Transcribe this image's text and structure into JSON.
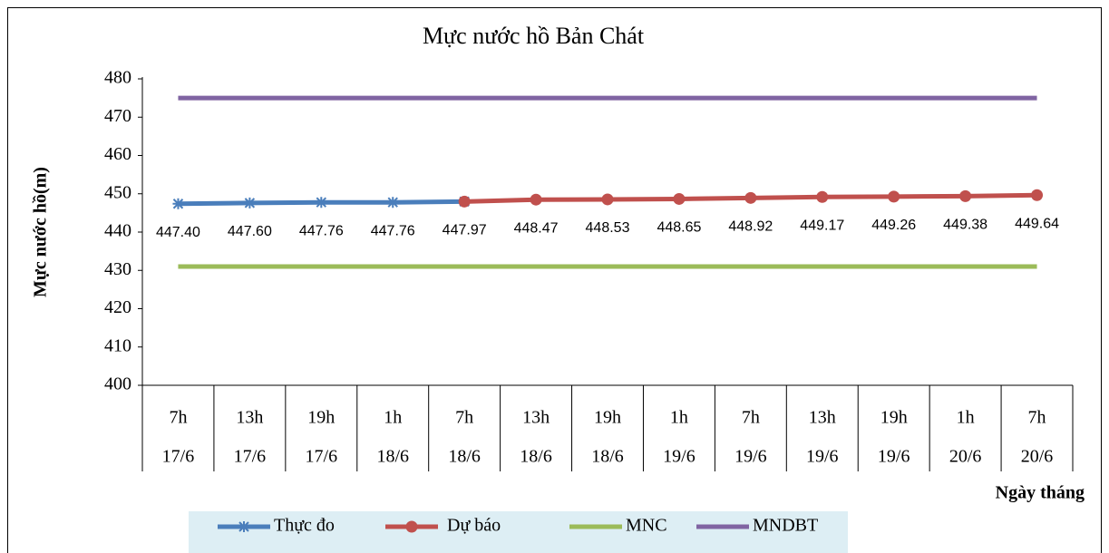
{
  "chart_data": {
    "type": "line",
    "title": "Mực nước hồ Bản Chát",
    "y_label": "Mực nước hồ(m)",
    "x_label": "Ngày tháng",
    "categories": [
      [
        "7h",
        "17/6"
      ],
      [
        "13h",
        "17/6"
      ],
      [
        "19h",
        "17/6"
      ],
      [
        "1h",
        "18/6"
      ],
      [
        "7h",
        "18/6"
      ],
      [
        "13h",
        "18/6"
      ],
      [
        "19h",
        "18/6"
      ],
      [
        "1h",
        "19/6"
      ],
      [
        "7h",
        "19/6"
      ],
      [
        "13h",
        "19/6"
      ],
      [
        "19h",
        "19/6"
      ],
      [
        "1h",
        "20/6"
      ],
      [
        "7h",
        "20/6"
      ]
    ],
    "series": [
      {
        "name": "Thực đo",
        "color": "#4a7ebb",
        "marker": "star",
        "values": [
          447.4,
          447.6,
          447.76,
          447.76,
          447.97,
          null,
          null,
          null,
          null,
          null,
          null,
          null,
          null
        ],
        "value_labels": [
          "447.40",
          "447.60",
          "447.76",
          "447.76",
          null,
          null,
          null,
          null,
          null,
          null,
          null,
          null,
          null
        ]
      },
      {
        "name": "Dự báo",
        "color": "#c0504d",
        "marker": "circle",
        "values": [
          null,
          null,
          null,
          null,
          447.97,
          448.47,
          448.53,
          448.65,
          448.92,
          449.17,
          449.26,
          449.38,
          449.64
        ],
        "value_labels": [
          null,
          null,
          null,
          null,
          "447.97",
          "448.47",
          "448.53",
          "448.65",
          "448.92",
          "449.17",
          "449.26",
          "449.38",
          "449.64"
        ]
      },
      {
        "name": "MNC",
        "color": "#9bbb59",
        "marker": "none",
        "values": [
          431,
          431,
          431,
          431,
          431,
          431,
          431,
          431,
          431,
          431,
          431,
          431,
          431
        ]
      },
      {
        "name": "MNDBT",
        "color": "#8064a2",
        "marker": "none",
        "values": [
          475,
          475,
          475,
          475,
          475,
          475,
          475,
          475,
          475,
          475,
          475,
          475,
          475
        ]
      }
    ],
    "ylim": [
      400,
      480
    ],
    "yticks": [
      400,
      410,
      420,
      430,
      440,
      450,
      460,
      470,
      480
    ],
    "grid": false,
    "legend": "bottom"
  }
}
